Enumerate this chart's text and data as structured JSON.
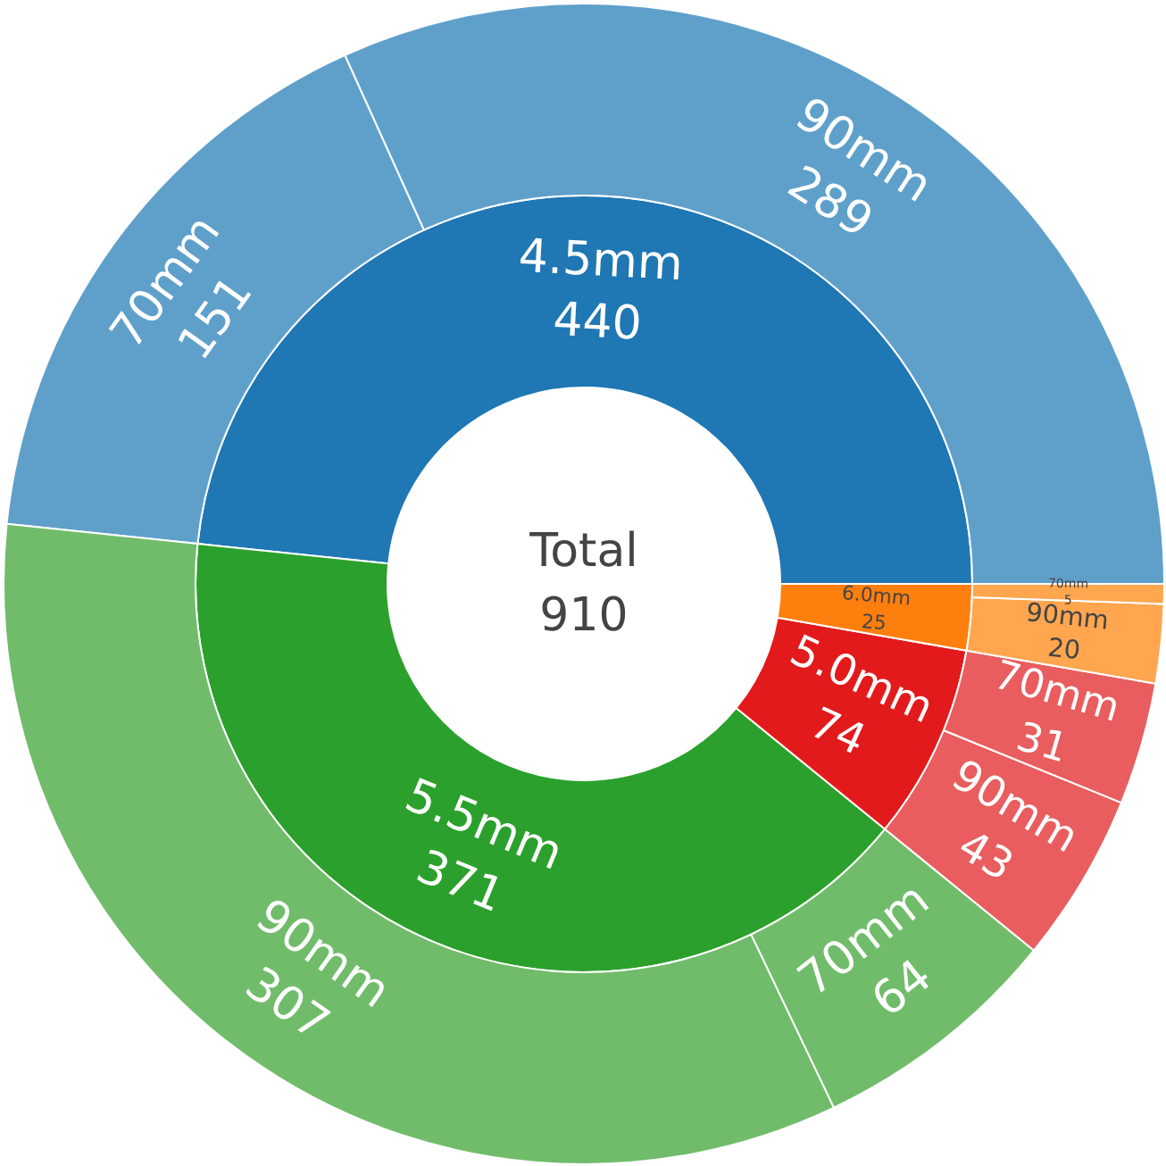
{
  "chart_data": {
    "type": "donut",
    "title": "Total",
    "totals": [
      "910"
    ],
    "series": [
      {
        "values": [
          440,
          371,
          74,
          25
        ],
        "value_labels": [
          "4.5mm\n440",
          "5.5mm\n371",
          "5.0mm\n74",
          "6.0mm\n25"
        ],
        "colors": [
          "#1f77b4",
          "#2ca02c",
          "#e31a1c",
          "#ff7f0e"
        ]
      },
      {
        "values": [
          289,
          151,
          307,
          64,
          43,
          31,
          20,
          5
        ],
        "value_labels": [
          "90mm\n289",
          "70mm\n151",
          "90mm\n307",
          "70mm\n64",
          "90mm\n43",
          "70mm\n31",
          "90mm\n20",
          "70mm\n5"
        ],
        "colors": [
          "#5fa0cb",
          "#5fa0cb",
          "#70bc6a",
          "#70bc6a",
          "#e95d5f",
          "#e95d5f",
          "#ffa64f",
          "#ffa64f"
        ]
      }
    ]
  }
}
